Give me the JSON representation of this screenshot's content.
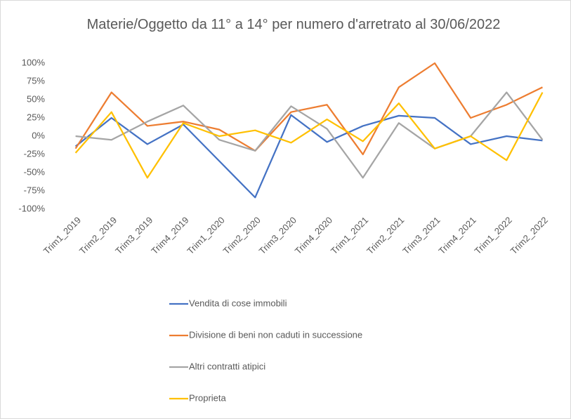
{
  "chart_data": {
    "type": "line",
    "title": "Materie/Oggetto da 11° a 14° per numero d'arretrato al 30/06/2022",
    "categories": [
      "Trim1_2019",
      "Trim2_2019",
      "Trim3_2019",
      "Trim4_2019",
      "Trim1_2020",
      "Trim2_2020",
      "Trim3_2020",
      "Trim4_2020",
      "Trim1_2021",
      "Trim2_2021",
      "Trim3_2021",
      "Trim4_2021",
      "Trim1_2022",
      "Trim2_2022"
    ],
    "series": [
      {
        "name": "Vendita di cose immobili",
        "color": "#4472c4",
        "values": [
          -14,
          25,
          -11,
          16,
          -34,
          -84,
          29,
          -8,
          14,
          28,
          25,
          -11,
          0,
          -6
        ]
      },
      {
        "name": "Divisione di beni non caduti in successione",
        "color": "#ed7d31",
        "values": [
          -17,
          60,
          14,
          20,
          9,
          -20,
          33,
          43,
          -25,
          67,
          100,
          25,
          43,
          67
        ]
      },
      {
        "name": "Altri contratti atipici",
        "color": "#a5a5a5",
        "values": [
          0,
          -5,
          20,
          42,
          -5,
          -20,
          41,
          10,
          -57,
          18,
          -17,
          0,
          60,
          -5
        ]
      },
      {
        "name": "Proprieta",
        "color": "#ffc000",
        "values": [
          -23,
          33,
          -57,
          18,
          0,
          8,
          -9,
          23,
          -7,
          45,
          -17,
          0,
          -33,
          60
        ]
      }
    ],
    "ylim": [
      -100,
      100
    ],
    "yticks": [
      {
        "value": -100,
        "label": "-100%"
      },
      {
        "value": -75,
        "label": "-75%"
      },
      {
        "value": -50,
        "label": "-50%"
      },
      {
        "value": -25,
        "label": "-25%"
      },
      {
        "value": 0,
        "label": "0%"
      },
      {
        "value": 25,
        "label": "25%"
      },
      {
        "value": 50,
        "label": "50%"
      },
      {
        "value": 75,
        "label": "75%"
      },
      {
        "value": 100,
        "label": "100%"
      }
    ],
    "legend": "bottom"
  }
}
